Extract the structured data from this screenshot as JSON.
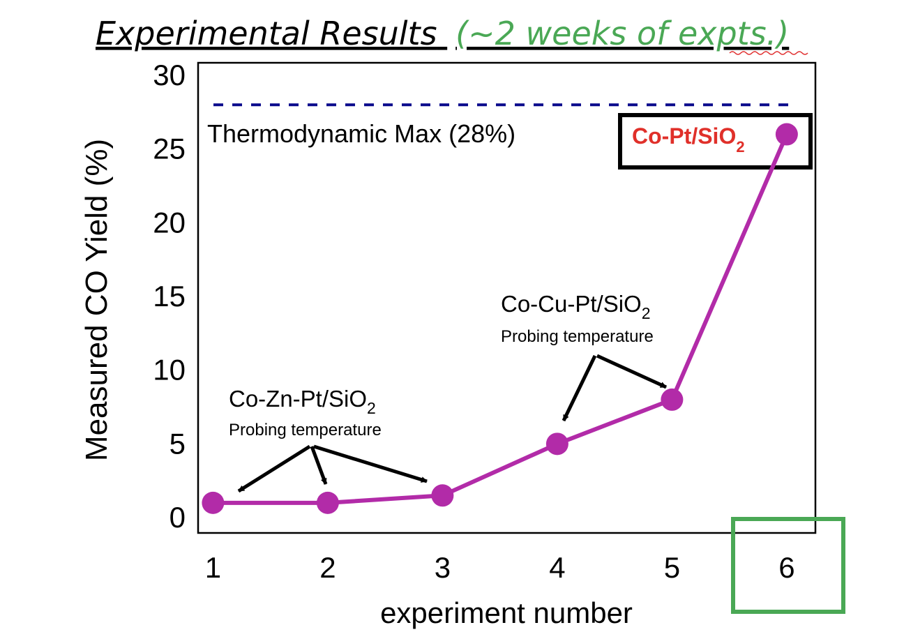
{
  "slide": {
    "title": "Experimental Results",
    "title_note": "(~2 weeks of expts.)",
    "title_color": "#000000",
    "note_color": "#4aa855",
    "spellcheck_color": "#e03030"
  },
  "chart_data": {
    "type": "line",
    "xlabel": "experiment number",
    "ylabel": "Measured CO Yield (%)",
    "x": [
      1,
      2,
      3,
      4,
      5,
      6
    ],
    "x_ticks": [
      "1",
      "2",
      "3",
      "4",
      "5",
      "6"
    ],
    "y_ticks": [
      "0",
      "5",
      "10",
      "15",
      "20",
      "25",
      "30"
    ],
    "ylim": [
      0,
      30
    ],
    "xlim": [
      0.87,
      6.25
    ],
    "series": [
      {
        "values": [
          1.0,
          1.0,
          1.5,
          5.0,
          8.0,
          26.0
        ],
        "color": "#b22ba8"
      }
    ],
    "reference_line": {
      "value": 28,
      "label": "Thermodynamic Max (28%)",
      "color": "#0a0a8c"
    },
    "annotations": [
      {
        "label": "Co-Zn-Pt/SiO",
        "subscript": "2",
        "note": "Probing temperature",
        "points": [
          1,
          2,
          3
        ]
      },
      {
        "label": "Co-Cu-Pt/SiO",
        "subscript": "2",
        "note": "Probing temperature",
        "points": [
          4,
          5
        ]
      },
      {
        "label": "Co-Pt/SiO",
        "subscript": "2",
        "color": "#e0302a",
        "point": 6
      }
    ],
    "highlight": {
      "x_tick": "6",
      "color": "#4aa855"
    }
  }
}
